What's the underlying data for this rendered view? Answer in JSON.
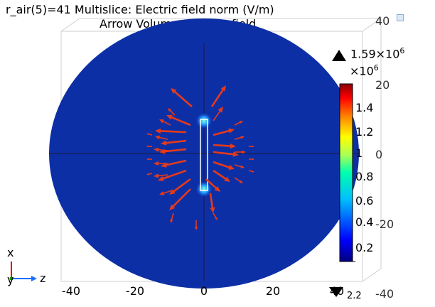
{
  "header": {
    "title_line1": "r_air(5)=41   Multislice: Electric field norm (V/m)",
    "title_line2": "Arrow Volume: Electric field"
  },
  "colorbar": {
    "max_value": "1.59×10",
    "max_exponent": "6",
    "scale_base": "×10",
    "scale_exponent": "6",
    "ticks": [
      "1.4",
      "1.2",
      "1",
      "0.8",
      "0.6",
      "0.4",
      "0.2"
    ],
    "min_label": "2.2",
    "colors": [
      "#00007f",
      "#0000ff",
      "#007fff",
      "#00ffff",
      "#7fff7f",
      "#ffff00",
      "#ff7f00",
      "#ff0000",
      "#7f0000"
    ]
  },
  "axes": {
    "x_ticks": [
      "-40",
      "-20",
      "0",
      "20",
      "40"
    ],
    "right_ticks": [
      "40",
      "20",
      "0",
      "-20",
      "-40"
    ],
    "triad": {
      "up_label": "x",
      "down_label": "y",
      "right_label": "z"
    }
  },
  "colors": {
    "disk": "#0d2fa6",
    "arrow": "#e53a1a",
    "background": "#ffffff"
  }
}
